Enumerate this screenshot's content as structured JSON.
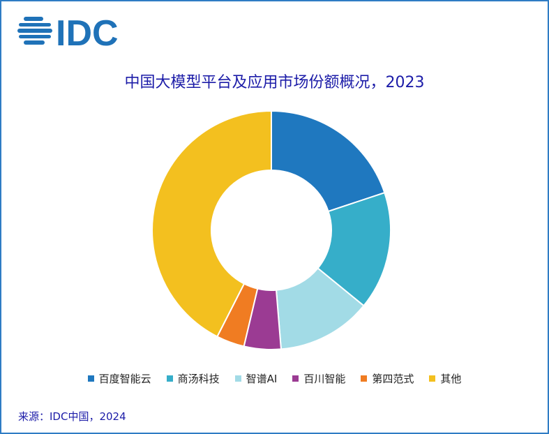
{
  "logo": {
    "text": "IDC",
    "color": "#1f72b8"
  },
  "chart_data": {
    "type": "pie",
    "donut": true,
    "title": "中国大模型平台及应用市场份额概况，2023",
    "categories": [
      "百度智能云",
      "商汤科技",
      "智谱AI",
      "百川智能",
      "第四范式",
      "其他"
    ],
    "values": [
      19.9,
      16.0,
      12.8,
      5.0,
      3.8,
      42.5
    ],
    "unit": "%",
    "colors": [
      "#1f78bf",
      "#36aec9",
      "#a2dbe6",
      "#9b3b93",
      "#f07c22",
      "#f3c01f"
    ],
    "legend": "bottom"
  },
  "source": "来源：IDC中国，2024"
}
